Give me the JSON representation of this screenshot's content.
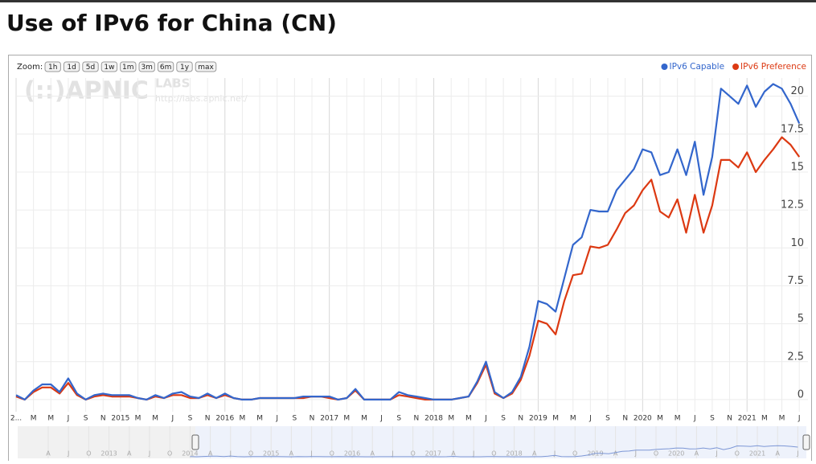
{
  "header": {
    "title": "Use of IPv6 for China (CN)"
  },
  "zoom": {
    "label": "Zoom:",
    "buttons": [
      "1h",
      "1d",
      "5d",
      "1w",
      "1m",
      "3m",
      "6m",
      "1y",
      "max"
    ]
  },
  "watermark": {
    "logo": "(::)APNIC",
    "labs": "LABS",
    "url": "http://labs.apnic.net/"
  },
  "navigator": {
    "labels": [
      "A",
      "J",
      "O",
      "2013",
      "A",
      "J",
      "O",
      "2014",
      "A",
      "J",
      "O",
      "2015",
      "A",
      "J",
      "O",
      "2016",
      "A",
      "J",
      "O",
      "2017",
      "A",
      "J",
      "O",
      "2018",
      "A",
      "J",
      "O",
      "2019",
      "A",
      "J",
      "O",
      "2020",
      "A",
      "J",
      "O",
      "2021",
      "A",
      "J"
    ]
  },
  "chart_data": {
    "type": "line",
    "grid": true,
    "legend": "top-right",
    "x": [
      "2014-01",
      "2014-02",
      "2014-03",
      "2014-04",
      "2014-05",
      "2014-06",
      "2014-07",
      "2014-08",
      "2014-09",
      "2014-10",
      "2014-11",
      "2014-12",
      "2015-01",
      "2015-02",
      "2015-03",
      "2015-04",
      "2015-05",
      "2015-06",
      "2015-07",
      "2015-08",
      "2015-09",
      "2015-10",
      "2015-11",
      "2015-12",
      "2016-01",
      "2016-02",
      "2016-03",
      "2016-04",
      "2016-05",
      "2016-06",
      "2016-07",
      "2016-08",
      "2016-09",
      "2016-10",
      "2016-11",
      "2016-12",
      "2017-01",
      "2017-02",
      "2017-03",
      "2017-04",
      "2017-05",
      "2017-06",
      "2017-07",
      "2017-08",
      "2017-09",
      "2017-10",
      "2017-11",
      "2017-12",
      "2018-01",
      "2018-02",
      "2018-03",
      "2018-04",
      "2018-05",
      "2018-06",
      "2018-07",
      "2018-08",
      "2018-09",
      "2018-10",
      "2018-11",
      "2018-12",
      "2019-01",
      "2019-02",
      "2019-03",
      "2019-04",
      "2019-05",
      "2019-06",
      "2019-07",
      "2019-08",
      "2019-09",
      "2019-10",
      "2019-11",
      "2019-12",
      "2020-01",
      "2020-02",
      "2020-03",
      "2020-04",
      "2020-05",
      "2020-06",
      "2020-07",
      "2020-08",
      "2020-09",
      "2020-10",
      "2020-11",
      "2020-12",
      "2021-01",
      "2021-02",
      "2021-03",
      "2021-04",
      "2021-05",
      "2021-06",
      "2021-07"
    ],
    "series": [
      {
        "name": "IPv6 Capable",
        "color": "#3366cc",
        "values": [
          0.3,
          0.0,
          0.6,
          1.0,
          1.0,
          0.5,
          1.4,
          0.4,
          0.0,
          0.3,
          0.4,
          0.3,
          0.3,
          0.3,
          0.1,
          0.0,
          0.3,
          0.1,
          0.4,
          0.5,
          0.2,
          0.1,
          0.4,
          0.1,
          0.4,
          0.1,
          0.0,
          0.0,
          0.1,
          0.1,
          0.1,
          0.1,
          0.1,
          0.2,
          0.2,
          0.2,
          0.2,
          0.0,
          0.1,
          0.7,
          0.0,
          0.0,
          0.0,
          0.0,
          0.5,
          0.3,
          0.2,
          0.1,
          0.0,
          0.0,
          0.0,
          0.1,
          0.2,
          1.2,
          2.5,
          0.5,
          0.1,
          0.5,
          1.5,
          3.5,
          6.5,
          6.3,
          5.8,
          8.0,
          10.2,
          10.7,
          12.5,
          12.4,
          12.4,
          13.8,
          14.5,
          15.2,
          16.5,
          16.3,
          14.8,
          15.0,
          16.5,
          14.8,
          17.0,
          13.5,
          16.0,
          20.5,
          20.0,
          19.5,
          20.7,
          19.3,
          20.3,
          20.8,
          20.5,
          19.5,
          18.2
        ]
      },
      {
        "name": "IPv6 Preference",
        "color": "#dc3912",
        "values": [
          0.2,
          0.0,
          0.5,
          0.8,
          0.8,
          0.4,
          1.1,
          0.3,
          0.0,
          0.2,
          0.3,
          0.2,
          0.2,
          0.2,
          0.1,
          0.0,
          0.2,
          0.1,
          0.3,
          0.3,
          0.1,
          0.1,
          0.3,
          0.1,
          0.3,
          0.1,
          0.0,
          0.0,
          0.1,
          0.1,
          0.1,
          0.1,
          0.1,
          0.1,
          0.2,
          0.2,
          0.1,
          0.0,
          0.1,
          0.6,
          0.0,
          0.0,
          0.0,
          0.0,
          0.3,
          0.2,
          0.1,
          0.0,
          0.0,
          0.0,
          0.0,
          0.1,
          0.2,
          1.1,
          2.3,
          0.4,
          0.1,
          0.4,
          1.3,
          2.9,
          5.2,
          5.0,
          4.3,
          6.5,
          8.2,
          8.3,
          10.1,
          10.0,
          10.2,
          11.2,
          12.3,
          12.8,
          13.8,
          14.5,
          12.4,
          12.0,
          13.2,
          11.0,
          13.5,
          11.0,
          12.8,
          15.8,
          15.8,
          15.3,
          16.3,
          15.0,
          15.8,
          16.5,
          17.3,
          16.8,
          16.0
        ]
      }
    ],
    "ylim": [
      -0.8,
      21.2
    ],
    "yticks": [
      0,
      2.5,
      5,
      7.5,
      10,
      12.5,
      15,
      17.5,
      20
    ],
    "xticks": [
      {
        "value": "2014-01",
        "label": "2..."
      },
      {
        "value": "2014-03",
        "label": "M"
      },
      {
        "value": "2014-05",
        "label": "M"
      },
      {
        "value": "2014-07",
        "label": "J"
      },
      {
        "value": "2014-09",
        "label": "S"
      },
      {
        "value": "2014-11",
        "label": "N"
      },
      {
        "value": "2015-01",
        "label": "2015"
      },
      {
        "value": "2015-03",
        "label": "M"
      },
      {
        "value": "2015-05",
        "label": "M"
      },
      {
        "value": "2015-07",
        "label": "J"
      },
      {
        "value": "2015-09",
        "label": "S"
      },
      {
        "value": "2015-11",
        "label": "N"
      },
      {
        "value": "2016-01",
        "label": "2016"
      },
      {
        "value": "2016-03",
        "label": "M"
      },
      {
        "value": "2016-05",
        "label": "M"
      },
      {
        "value": "2016-07",
        "label": "J"
      },
      {
        "value": "2016-09",
        "label": "S"
      },
      {
        "value": "2016-11",
        "label": "N"
      },
      {
        "value": "2017-01",
        "label": "2017"
      },
      {
        "value": "2017-03",
        "label": "M"
      },
      {
        "value": "2017-05",
        "label": "M"
      },
      {
        "value": "2017-07",
        "label": "J"
      },
      {
        "value": "2017-09",
        "label": "S"
      },
      {
        "value": "2017-11",
        "label": "N"
      },
      {
        "value": "2018-01",
        "label": "2018"
      },
      {
        "value": "2018-03",
        "label": "M"
      },
      {
        "value": "2018-05",
        "label": "M"
      },
      {
        "value": "2018-07",
        "label": "J"
      },
      {
        "value": "2018-09",
        "label": "S"
      },
      {
        "value": "2018-11",
        "label": "N"
      },
      {
        "value": "2019-01",
        "label": "2019"
      },
      {
        "value": "2019-03",
        "label": "M"
      },
      {
        "value": "2019-05",
        "label": "M"
      },
      {
        "value": "2019-07",
        "label": "J"
      },
      {
        "value": "2019-09",
        "label": "S"
      },
      {
        "value": "2019-11",
        "label": "N"
      },
      {
        "value": "2020-01",
        "label": "2020"
      },
      {
        "value": "2020-03",
        "label": "M"
      },
      {
        "value": "2020-05",
        "label": "M"
      },
      {
        "value": "2020-07",
        "label": "J"
      },
      {
        "value": "2020-09",
        "label": "S"
      },
      {
        "value": "2020-11",
        "label": "N"
      },
      {
        "value": "2021-01",
        "label": "2021"
      },
      {
        "value": "2021-03",
        "label": "M"
      },
      {
        "value": "2021-05",
        "label": "M"
      },
      {
        "value": "2021-07",
        "label": "J"
      }
    ]
  }
}
